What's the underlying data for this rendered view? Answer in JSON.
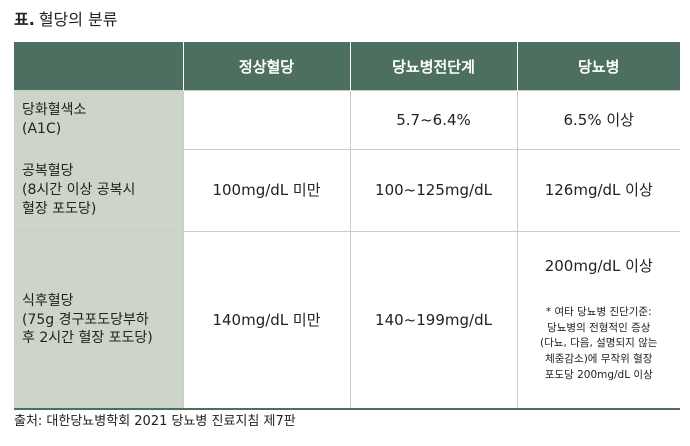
{
  "header": {
    "label": "표.",
    "title": "혈당의 분류"
  },
  "table": {
    "columns": [
      "정상혈당",
      "당뇨병전단계",
      "당뇨병"
    ],
    "rows": [
      {
        "label": "당화혈색소\n(A1C)",
        "cells": [
          null,
          "5.7~6.4%",
          "6.5% 이상"
        ]
      },
      {
        "label": "공복혈당\n(8시간 이상 공복시\n혈장 포도당)",
        "cells": [
          "100mg/dL 미만",
          "100~125mg/dL",
          "126mg/dL 이상"
        ]
      },
      {
        "label": "식후혈당\n(75g 경구포도당부하\n후 2시간 혈장 포도당)",
        "cells": [
          "140mg/dL 미만",
          "140~199mg/dL",
          "200mg/dL 이상"
        ],
        "note": "* 여타 당뇨병 진단기준:\n당뇨병의 전형적인 증상\n(다뇨, 다음, 설명되지 않는\n체중감소)에 무작위 혈장\n포도당 200mg/dL 이상"
      }
    ]
  },
  "source": "출처: 대한당뇨병학회 2021 당뇨병 진료지침 제7판"
}
